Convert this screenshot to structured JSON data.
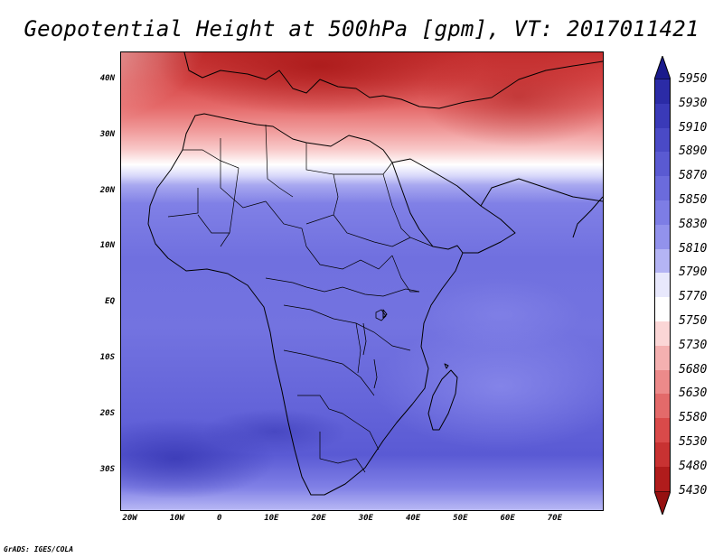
{
  "title": "Geopotential Height at 500hPa [gpm], VT: 2017011421",
  "footer": "GrADS: IGES/COLA",
  "x_ticks": [
    "20W",
    "10W",
    "0",
    "10E",
    "20E",
    "30E",
    "40E",
    "50E",
    "60E",
    "70E"
  ],
  "y_ticks": [
    "40N",
    "30N",
    "20N",
    "10N",
    "EQ",
    "10S",
    "20S",
    "30S"
  ],
  "colorbar": {
    "labels": [
      "5950",
      "5930",
      "5910",
      "5890",
      "5870",
      "5850",
      "5830",
      "5810",
      "5790",
      "5770",
      "5750",
      "5730",
      "5680",
      "5630",
      "5580",
      "5530",
      "5480",
      "5430"
    ],
    "colors": [
      "#1a1a8c",
      "#2b2ba6",
      "#3a3ab8",
      "#4a4ac6",
      "#5a5ad2",
      "#6b6bdc",
      "#7d7de5",
      "#9292ec",
      "#b4b4f4",
      "#e8e8fc",
      "#ffffff",
      "#fbd6d6",
      "#f4b0b0",
      "#ec8a8a",
      "#e36a6a",
      "#d94a4a",
      "#c83232",
      "#b01c1c",
      "#961010"
    ]
  },
  "chart_data": {
    "type": "heatmap",
    "title": "Geopotential Height at 500hPa [gpm], VT: 2017011421",
    "variable": "Geopotential Height at 500hPa",
    "units": "gpm",
    "valid_time": "2017011421",
    "lon_range": [
      -22,
      80
    ],
    "lat_range": [
      -37,
      45
    ],
    "contour_levels": [
      5430,
      5480,
      5530,
      5580,
      5630,
      5680,
      5730,
      5750,
      5770,
      5790,
      5810,
      5830,
      5850,
      5870,
      5890,
      5910,
      5930,
      5950
    ],
    "latitude_bands_gpm": [
      {
        "lat": 42,
        "value": 5580
      },
      {
        "lat": 38,
        "value": 5630
      },
      {
        "lat": 33,
        "value": 5700
      },
      {
        "lat": 28,
        "value": 5740
      },
      {
        "lat": 24,
        "value": 5765
      },
      {
        "lat": 21,
        "value": 5790
      },
      {
        "lat": 17,
        "value": 5830
      },
      {
        "lat": 10,
        "value": 5860
      },
      {
        "lat": 0,
        "value": 5870
      },
      {
        "lat": -10,
        "value": 5870
      },
      {
        "lat": -20,
        "value": 5880
      },
      {
        "lat": -28,
        "value": 5900
      },
      {
        "lat": -34,
        "value": 5850
      }
    ]
  }
}
